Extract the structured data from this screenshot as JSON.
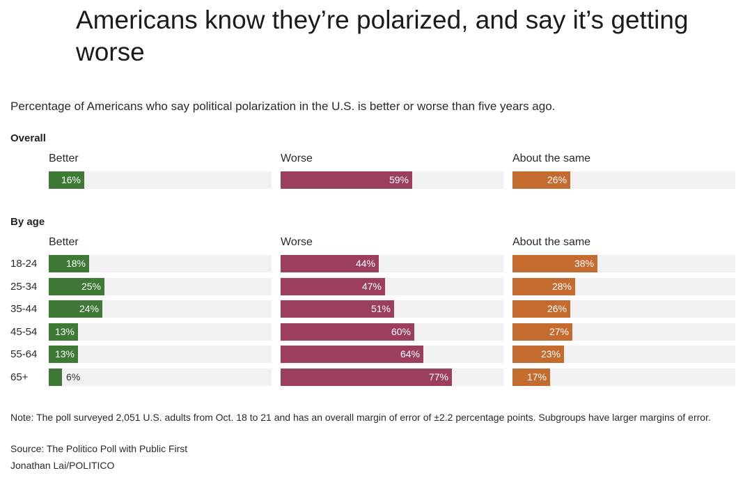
{
  "colors": {
    "better": "#3e7a36",
    "worse": "#9c3f5e",
    "same": "#c46b2f",
    "track": "#f1f1f1"
  },
  "chart_data": {
    "type": "bar",
    "title": "Americans know they’re polarized, and say it’s getting worse",
    "subtitle": "Percentage of Americans who say political polarization in the U.S. is better or worse than five years ago.",
    "xlim": [
      0,
      100
    ],
    "unit": "%",
    "series_names": [
      "Better",
      "Worse",
      "About the same"
    ],
    "sections": [
      {
        "label": "Overall",
        "rows": [
          {
            "label": "",
            "values": [
              16,
              59,
              26
            ]
          }
        ]
      },
      {
        "label": "By age",
        "rows": [
          {
            "label": "18-24",
            "values": [
              18,
              44,
              38
            ]
          },
          {
            "label": "25-34",
            "values": [
              25,
              47,
              28
            ]
          },
          {
            "label": "35-44",
            "values": [
              24,
              51,
              26
            ]
          },
          {
            "label": "45-54",
            "values": [
              13,
              60,
              27
            ]
          },
          {
            "label": "55-64",
            "values": [
              13,
              64,
              23
            ]
          },
          {
            "label": "65+",
            "values": [
              6,
              77,
              17
            ]
          }
        ]
      }
    ]
  },
  "footer": {
    "note": "Note: The poll surveyed 2,051 U.S. adults from Oct. 18 to 21 and has an overall margin of error of ±2.2 percentage points. Subgroups have larger margins of error.",
    "source": "Source: The Politico Poll with Public First",
    "credit": "Jonathan Lai/POLITICO"
  }
}
